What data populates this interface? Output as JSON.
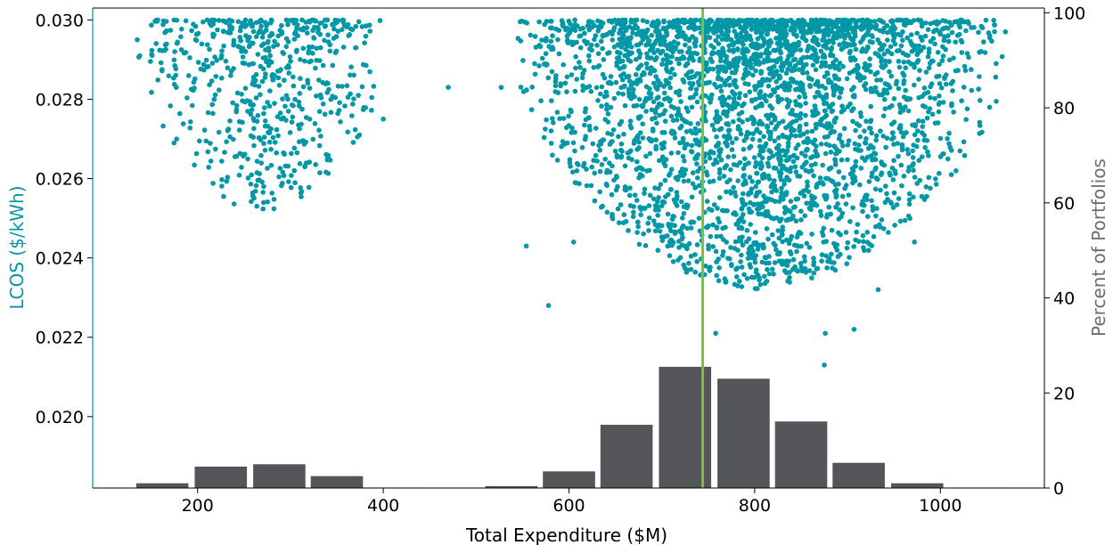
{
  "chart_data": {
    "type": "scatter",
    "xlabel": "Total Expenditure ($M)",
    "ylabel": "LCOS ($/kWh)",
    "y2label": "Percent of Portfolios",
    "xlim": [
      87,
      1112
    ],
    "ylim": [
      0.0182,
      0.0303
    ],
    "y2lim": [
      0,
      101
    ],
    "x_ticks": [
      200,
      400,
      600,
      800,
      1000
    ],
    "y_ticks": [
      0.02,
      0.022,
      0.024,
      0.026,
      0.028,
      0.03
    ],
    "y_tick_labels": [
      "0.020",
      "0.022",
      "0.024",
      "0.026",
      "0.028",
      "0.030"
    ],
    "y2_ticks": [
      0,
      20,
      40,
      60,
      80,
      100
    ],
    "grid": false,
    "colors": {
      "scatter": "#0097a7",
      "histogram": "#545559",
      "median_line": "#7bc043",
      "left_axis": "#0097a7",
      "right_axis_label": "#6e6e6e"
    },
    "scatter_clusters": [
      {
        "x_range": [
          130,
          410
        ],
        "lcos_min": 0.0252,
        "lcos_max": 0.03,
        "count": 600
      },
      {
        "x_range": [
          540,
          1072
        ],
        "lcos_min": 0.0232,
        "lcos_max": 0.03,
        "count": 3200
      }
    ],
    "scatter_outliers": [
      {
        "x": 135,
        "y": 0.0295
      },
      {
        "x": 470,
        "y": 0.0283
      },
      {
        "x": 527,
        "y": 0.0283
      },
      {
        "x": 1070,
        "y": 0.0297
      },
      {
        "x": 1053,
        "y": 0.0278
      },
      {
        "x": 1060,
        "y": 0.0289
      },
      {
        "x": 400,
        "y": 0.0275
      },
      {
        "x": 554,
        "y": 0.0243
      },
      {
        "x": 578,
        "y": 0.0228
      },
      {
        "x": 605,
        "y": 0.0244
      },
      {
        "x": 758,
        "y": 0.0221
      },
      {
        "x": 875,
        "y": 0.0213
      },
      {
        "x": 876,
        "y": 0.0221
      },
      {
        "x": 907,
        "y": 0.0222
      },
      {
        "x": 933,
        "y": 0.0232
      },
      {
        "x": 972,
        "y": 0.0244
      }
    ],
    "histogram": {
      "bin_centers": [
        162,
        225,
        288,
        350,
        412,
        538,
        600,
        662,
        725,
        788,
        850,
        912,
        975,
        1038
      ],
      "bin_width": 62.5,
      "percent": [
        1.0,
        4.5,
        5.0,
        2.5,
        0.1,
        0.4,
        3.5,
        13.3,
        25.5,
        23.0,
        14.0,
        5.3,
        1.0,
        0.1
      ]
    },
    "median_x": 744
  }
}
